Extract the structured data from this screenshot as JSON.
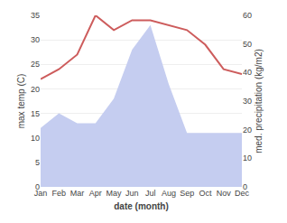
{
  "chart_data": {
    "type": "line",
    "xlabel": "date (month)",
    "ylabel": "max temp (C)",
    "y2label": "med. precipitation (kg/m2)",
    "categories": [
      "Jan",
      "Feb",
      "Mar",
      "Apr",
      "May",
      "Jun",
      "Jul",
      "Aug",
      "Sep",
      "Oct",
      "Nov",
      "Dec"
    ],
    "series": [
      {
        "type": "area",
        "color": "#c5cdf0",
        "values": [
          12,
          15,
          13,
          13,
          18,
          28,
          33,
          21,
          11,
          11,
          11,
          11
        ]
      },
      {
        "type": "line",
        "color": "#cd5c5c",
        "values": [
          22,
          24,
          27,
          35,
          32,
          34,
          34,
          33,
          32,
          29,
          24,
          23
        ]
      }
    ],
    "ylim": [
      0,
      35
    ],
    "yticks": [
      0,
      5,
      10,
      15,
      20,
      25,
      30,
      35
    ],
    "y2lim": [
      0,
      60
    ],
    "y2ticks": [
      0,
      10,
      20,
      30,
      40,
      50,
      60
    ],
    "grid": true
  }
}
